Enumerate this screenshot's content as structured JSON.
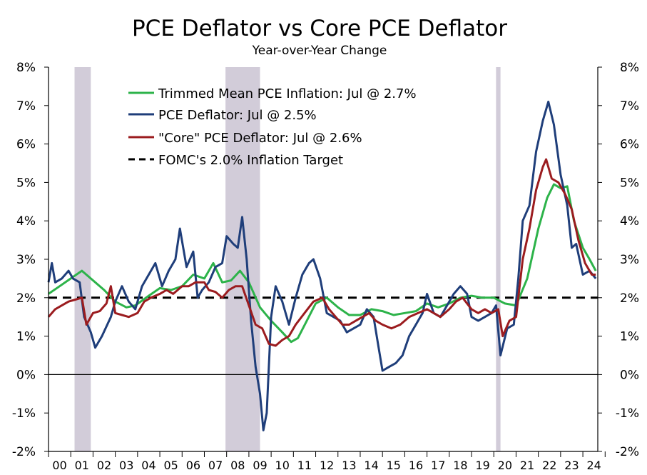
{
  "chart_data": {
    "type": "line",
    "title": "PCE Deflator vs Core PCE Deflator",
    "subtitle": "Year-over-Year Change",
    "xlabel": "",
    "ylabel": "",
    "x_range": [
      2000.0,
      2024.67
    ],
    "ylim": [
      -2,
      8
    ],
    "y_ticks": [
      "-2%",
      "-1%",
      "0%",
      "1%",
      "2%",
      "3%",
      "4%",
      "5%",
      "6%",
      "7%",
      "8%"
    ],
    "x_tick_labels": [
      "00",
      "01",
      "02",
      "03",
      "04",
      "05",
      "06",
      "07",
      "08",
      "09",
      "10",
      "11",
      "12",
      "13",
      "14",
      "15",
      "16",
      "17",
      "18",
      "19",
      "20",
      "21",
      "22",
      "23",
      "24"
    ],
    "grid": false,
    "legend_position": "top-center",
    "recessions": [
      [
        2001.17,
        2001.9
      ],
      [
        2007.95,
        2009.5
      ],
      [
        2020.1,
        2020.3
      ]
    ],
    "target": {
      "name": "FOMC's 2.0% Inflation Target",
      "value": 2.0,
      "color": "#000000"
    },
    "series": [
      {
        "name": "Trimmed Mean PCE Inflation: Jul @ 2.7%",
        "color": "#2db34a",
        "points": [
          [
            2000.0,
            2.1
          ],
          [
            2000.5,
            2.3
          ],
          [
            2001.0,
            2.5
          ],
          [
            2001.5,
            2.7
          ],
          [
            2001.9,
            2.5
          ],
          [
            2002.5,
            2.2
          ],
          [
            2003.0,
            1.9
          ],
          [
            2003.5,
            1.75
          ],
          [
            2003.9,
            1.8
          ],
          [
            2004.5,
            2.05
          ],
          [
            2005.0,
            2.25
          ],
          [
            2005.5,
            2.2
          ],
          [
            2006.0,
            2.3
          ],
          [
            2006.5,
            2.6
          ],
          [
            2007.0,
            2.5
          ],
          [
            2007.4,
            2.9
          ],
          [
            2007.8,
            2.4
          ],
          [
            2008.2,
            2.45
          ],
          [
            2008.6,
            2.7
          ],
          [
            2009.0,
            2.4
          ],
          [
            2009.5,
            1.75
          ],
          [
            2010.0,
            1.4
          ],
          [
            2010.5,
            1.1
          ],
          [
            2010.9,
            0.85
          ],
          [
            2011.2,
            0.95
          ],
          [
            2011.6,
            1.4
          ],
          [
            2012.0,
            1.85
          ],
          [
            2012.5,
            2.0
          ],
          [
            2013.0,
            1.75
          ],
          [
            2013.5,
            1.55
          ],
          [
            2014.0,
            1.55
          ],
          [
            2014.5,
            1.7
          ],
          [
            2015.0,
            1.65
          ],
          [
            2015.5,
            1.55
          ],
          [
            2016.0,
            1.6
          ],
          [
            2016.5,
            1.65
          ],
          [
            2017.0,
            1.85
          ],
          [
            2017.5,
            1.75
          ],
          [
            2018.0,
            1.85
          ],
          [
            2018.5,
            2.0
          ],
          [
            2019.0,
            2.05
          ],
          [
            2019.5,
            2.0
          ],
          [
            2020.0,
            2.0
          ],
          [
            2020.5,
            1.85
          ],
          [
            2021.0,
            1.8
          ],
          [
            2021.5,
            2.5
          ],
          [
            2022.0,
            3.8
          ],
          [
            2022.4,
            4.6
          ],
          [
            2022.7,
            4.95
          ],
          [
            2023.0,
            4.85
          ],
          [
            2023.3,
            4.9
          ],
          [
            2023.6,
            4.0
          ],
          [
            2024.0,
            3.3
          ],
          [
            2024.3,
            3.0
          ],
          [
            2024.58,
            2.7
          ]
        ]
      },
      {
        "name": "PCE Deflator: Jul @ 2.5%",
        "color": "#1f3e7a",
        "points": [
          [
            2000.0,
            2.4
          ],
          [
            2000.15,
            2.9
          ],
          [
            2000.3,
            2.4
          ],
          [
            2000.6,
            2.5
          ],
          [
            2000.9,
            2.7
          ],
          [
            2001.1,
            2.5
          ],
          [
            2001.4,
            2.4
          ],
          [
            2001.6,
            1.5
          ],
          [
            2001.9,
            1.1
          ],
          [
            2002.1,
            0.7
          ],
          [
            2002.4,
            1.0
          ],
          [
            2002.8,
            1.5
          ],
          [
            2003.0,
            1.9
          ],
          [
            2003.3,
            2.3
          ],
          [
            2003.6,
            1.9
          ],
          [
            2003.9,
            1.7
          ],
          [
            2004.2,
            2.3
          ],
          [
            2004.5,
            2.6
          ],
          [
            2004.8,
            2.9
          ],
          [
            2005.1,
            2.3
          ],
          [
            2005.4,
            2.7
          ],
          [
            2005.7,
            3.0
          ],
          [
            2005.9,
            3.8
          ],
          [
            2006.2,
            2.8
          ],
          [
            2006.5,
            3.2
          ],
          [
            2006.7,
            2.0
          ],
          [
            2006.9,
            2.2
          ],
          [
            2007.2,
            2.4
          ],
          [
            2007.5,
            2.8
          ],
          [
            2007.8,
            2.9
          ],
          [
            2008.0,
            3.6
          ],
          [
            2008.3,
            3.4
          ],
          [
            2008.5,
            3.3
          ],
          [
            2008.7,
            4.1
          ],
          [
            2008.9,
            3.0
          ],
          [
            2009.1,
            1.4
          ],
          [
            2009.3,
            0.2
          ],
          [
            2009.5,
            -0.5
          ],
          [
            2009.65,
            -1.45
          ],
          [
            2009.8,
            -1.0
          ],
          [
            2010.0,
            1.5
          ],
          [
            2010.2,
            2.3
          ],
          [
            2010.5,
            1.9
          ],
          [
            2010.8,
            1.3
          ],
          [
            2011.1,
            2.0
          ],
          [
            2011.4,
            2.6
          ],
          [
            2011.7,
            2.9
          ],
          [
            2011.9,
            3.0
          ],
          [
            2012.2,
            2.5
          ],
          [
            2012.5,
            1.6
          ],
          [
            2012.8,
            1.5
          ],
          [
            2013.1,
            1.4
          ],
          [
            2013.4,
            1.1
          ],
          [
            2013.7,
            1.2
          ],
          [
            2014.0,
            1.3
          ],
          [
            2014.3,
            1.7
          ],
          [
            2014.6,
            1.5
          ],
          [
            2014.8,
            0.8
          ],
          [
            2015.0,
            0.1
          ],
          [
            2015.3,
            0.2
          ],
          [
            2015.6,
            0.3
          ],
          [
            2015.9,
            0.5
          ],
          [
            2016.2,
            1.0
          ],
          [
            2016.5,
            1.3
          ],
          [
            2016.8,
            1.6
          ],
          [
            2017.0,
            2.1
          ],
          [
            2017.3,
            1.6
          ],
          [
            2017.6,
            1.5
          ],
          [
            2017.9,
            1.8
          ],
          [
            2018.2,
            2.1
          ],
          [
            2018.5,
            2.3
          ],
          [
            2018.8,
            2.1
          ],
          [
            2019.0,
            1.5
          ],
          [
            2019.3,
            1.4
          ],
          [
            2019.6,
            1.5
          ],
          [
            2019.9,
            1.6
          ],
          [
            2020.1,
            1.8
          ],
          [
            2020.3,
            0.5
          ],
          [
            2020.6,
            1.2
          ],
          [
            2020.9,
            1.3
          ],
          [
            2021.1,
            2.5
          ],
          [
            2021.3,
            4.0
          ],
          [
            2021.6,
            4.4
          ],
          [
            2021.9,
            5.8
          ],
          [
            2022.2,
            6.6
          ],
          [
            2022.45,
            7.1
          ],
          [
            2022.7,
            6.5
          ],
          [
            2023.0,
            5.2
          ],
          [
            2023.3,
            4.4
          ],
          [
            2023.5,
            3.3
          ],
          [
            2023.7,
            3.4
          ],
          [
            2024.0,
            2.6
          ],
          [
            2024.3,
            2.7
          ],
          [
            2024.58,
            2.5
          ]
        ]
      },
      {
        "name": "\"Core\" PCE Deflator: Jul @ 2.6%",
        "color": "#9b1c1f",
        "points": [
          [
            2000.0,
            1.5
          ],
          [
            2000.3,
            1.7
          ],
          [
            2000.6,
            1.8
          ],
          [
            2000.9,
            1.9
          ],
          [
            2001.2,
            1.95
          ],
          [
            2001.5,
            2.0
          ],
          [
            2001.7,
            1.3
          ],
          [
            2002.0,
            1.6
          ],
          [
            2002.3,
            1.65
          ],
          [
            2002.6,
            1.85
          ],
          [
            2002.8,
            2.3
          ],
          [
            2003.0,
            1.6
          ],
          [
            2003.3,
            1.55
          ],
          [
            2003.6,
            1.5
          ],
          [
            2004.0,
            1.6
          ],
          [
            2004.3,
            1.9
          ],
          [
            2004.6,
            2.0
          ],
          [
            2005.0,
            2.1
          ],
          [
            2005.3,
            2.2
          ],
          [
            2005.6,
            2.1
          ],
          [
            2006.0,
            2.3
          ],
          [
            2006.3,
            2.3
          ],
          [
            2006.6,
            2.4
          ],
          [
            2007.0,
            2.4
          ],
          [
            2007.2,
            2.2
          ],
          [
            2007.5,
            2.15
          ],
          [
            2007.8,
            2.0
          ],
          [
            2008.1,
            2.2
          ],
          [
            2008.4,
            2.3
          ],
          [
            2008.7,
            2.3
          ],
          [
            2009.0,
            1.8
          ],
          [
            2009.3,
            1.3
          ],
          [
            2009.6,
            1.2
          ],
          [
            2009.9,
            0.8
          ],
          [
            2010.2,
            0.75
          ],
          [
            2010.5,
            0.9
          ],
          [
            2010.8,
            1.0
          ],
          [
            2011.1,
            1.3
          ],
          [
            2011.5,
            1.6
          ],
          [
            2011.9,
            1.9
          ],
          [
            2012.3,
            2.0
          ],
          [
            2012.6,
            1.7
          ],
          [
            2012.9,
            1.5
          ],
          [
            2013.2,
            1.3
          ],
          [
            2013.5,
            1.3
          ],
          [
            2013.8,
            1.4
          ],
          [
            2014.1,
            1.5
          ],
          [
            2014.4,
            1.6
          ],
          [
            2014.7,
            1.4
          ],
          [
            2015.0,
            1.3
          ],
          [
            2015.4,
            1.2
          ],
          [
            2015.8,
            1.3
          ],
          [
            2016.2,
            1.5
          ],
          [
            2016.6,
            1.6
          ],
          [
            2017.0,
            1.7
          ],
          [
            2017.3,
            1.6
          ],
          [
            2017.6,
            1.5
          ],
          [
            2018.0,
            1.7
          ],
          [
            2018.3,
            1.9
          ],
          [
            2018.6,
            2.0
          ],
          [
            2019.0,
            1.7
          ],
          [
            2019.3,
            1.6
          ],
          [
            2019.6,
            1.7
          ],
          [
            2019.9,
            1.6
          ],
          [
            2020.2,
            1.7
          ],
          [
            2020.4,
            1.0
          ],
          [
            2020.7,
            1.4
          ],
          [
            2021.0,
            1.5
          ],
          [
            2021.3,
            3.0
          ],
          [
            2021.6,
            3.8
          ],
          [
            2021.9,
            4.8
          ],
          [
            2022.2,
            5.4
          ],
          [
            2022.35,
            5.6
          ],
          [
            2022.6,
            5.1
          ],
          [
            2022.9,
            5.0
          ],
          [
            2023.2,
            4.7
          ],
          [
            2023.5,
            4.3
          ],
          [
            2023.8,
            3.5
          ],
          [
            2024.1,
            2.9
          ],
          [
            2024.4,
            2.6
          ],
          [
            2024.58,
            2.6
          ]
        ]
      }
    ]
  }
}
